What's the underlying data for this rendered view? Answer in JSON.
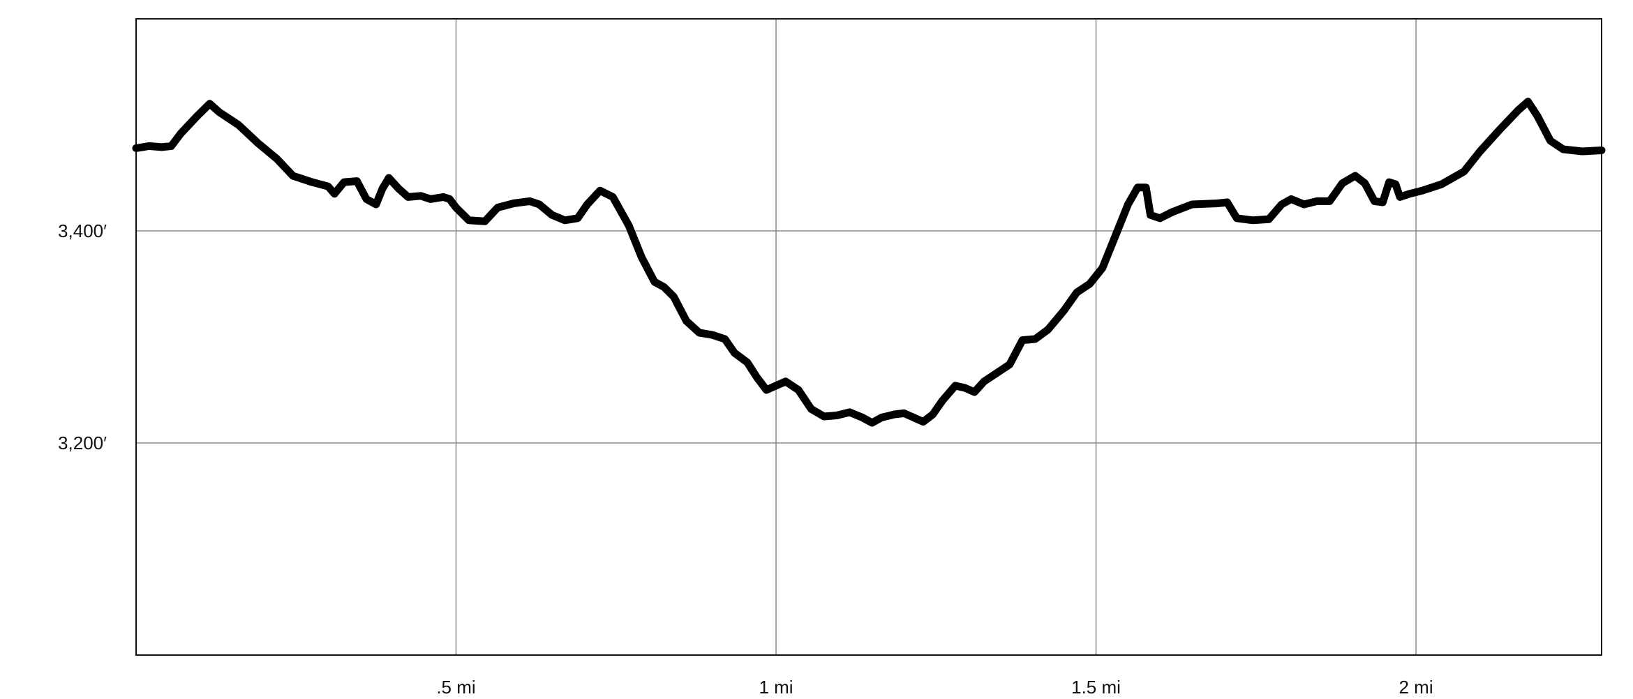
{
  "chart_data": {
    "type": "line",
    "title": "",
    "xlabel": "",
    "ylabel": "",
    "xlim": [
      0,
      2.29
    ],
    "ylim": [
      3000,
      3600
    ],
    "grid": true,
    "x_ticks": [
      {
        "value": 0.5,
        "label": ".5 mi"
      },
      {
        "value": 1.0,
        "label": "1 mi"
      },
      {
        "value": 1.5,
        "label": "1.5 mi"
      },
      {
        "value": 2.0,
        "label": "2 mi"
      }
    ],
    "y_ticks": [
      {
        "value": 3400,
        "label": "3,400′"
      },
      {
        "value": 3200,
        "label": "3,200′"
      }
    ],
    "series": [
      {
        "color": "#000000",
        "points": [
          [
            0.0,
            3478
          ],
          [
            0.02,
            3480
          ],
          [
            0.04,
            3479
          ],
          [
            0.055,
            3480
          ],
          [
            0.07,
            3492
          ],
          [
            0.095,
            3508
          ],
          [
            0.115,
            3520
          ],
          [
            0.13,
            3512
          ],
          [
            0.16,
            3500
          ],
          [
            0.19,
            3483
          ],
          [
            0.22,
            3468
          ],
          [
            0.245,
            3452
          ],
          [
            0.275,
            3446
          ],
          [
            0.3,
            3442
          ],
          [
            0.31,
            3435
          ],
          [
            0.325,
            3446
          ],
          [
            0.345,
            3447
          ],
          [
            0.36,
            3430
          ],
          [
            0.375,
            3425
          ],
          [
            0.385,
            3440
          ],
          [
            0.395,
            3450
          ],
          [
            0.41,
            3440
          ],
          [
            0.425,
            3432
          ],
          [
            0.445,
            3433
          ],
          [
            0.46,
            3430
          ],
          [
            0.48,
            3432
          ],
          [
            0.49,
            3430
          ],
          [
            0.5,
            3422
          ],
          [
            0.52,
            3410
          ],
          [
            0.545,
            3409
          ],
          [
            0.565,
            3422
          ],
          [
            0.59,
            3426
          ],
          [
            0.615,
            3428
          ],
          [
            0.63,
            3425
          ],
          [
            0.65,
            3415
          ],
          [
            0.67,
            3410
          ],
          [
            0.69,
            3412
          ],
          [
            0.705,
            3425
          ],
          [
            0.725,
            3438
          ],
          [
            0.745,
            3432
          ],
          [
            0.77,
            3405
          ],
          [
            0.79,
            3375
          ],
          [
            0.81,
            3352
          ],
          [
            0.825,
            3347
          ],
          [
            0.84,
            3338
          ],
          [
            0.86,
            3315
          ],
          [
            0.88,
            3304
          ],
          [
            0.9,
            3302
          ],
          [
            0.92,
            3298
          ],
          [
            0.935,
            3285
          ],
          [
            0.955,
            3276
          ],
          [
            0.97,
            3262
          ],
          [
            0.985,
            3250
          ],
          [
            1.0,
            3254
          ],
          [
            1.015,
            3258
          ],
          [
            1.035,
            3250
          ],
          [
            1.055,
            3232
          ],
          [
            1.075,
            3225
          ],
          [
            1.095,
            3226
          ],
          [
            1.115,
            3229
          ],
          [
            1.135,
            3224
          ],
          [
            1.15,
            3219
          ],
          [
            1.165,
            3224
          ],
          [
            1.185,
            3227
          ],
          [
            1.2,
            3228
          ],
          [
            1.215,
            3224
          ],
          [
            1.23,
            3220
          ],
          [
            1.245,
            3227
          ],
          [
            1.26,
            3240
          ],
          [
            1.28,
            3254
          ],
          [
            1.295,
            3252
          ],
          [
            1.31,
            3248
          ],
          [
            1.325,
            3258
          ],
          [
            1.345,
            3266
          ],
          [
            1.365,
            3274
          ],
          [
            1.385,
            3297
          ],
          [
            1.405,
            3298
          ],
          [
            1.425,
            3307
          ],
          [
            1.45,
            3325
          ],
          [
            1.47,
            3342
          ],
          [
            1.49,
            3350
          ],
          [
            1.51,
            3365
          ],
          [
            1.53,
            3395
          ],
          [
            1.55,
            3425
          ],
          [
            1.565,
            3441
          ],
          [
            1.578,
            3441
          ],
          [
            1.585,
            3415
          ],
          [
            1.6,
            3412
          ],
          [
            1.62,
            3418
          ],
          [
            1.65,
            3425
          ],
          [
            1.69,
            3426
          ],
          [
            1.705,
            3427
          ],
          [
            1.72,
            3412
          ],
          [
            1.745,
            3410
          ],
          [
            1.77,
            3411
          ],
          [
            1.79,
            3425
          ],
          [
            1.805,
            3430
          ],
          [
            1.825,
            3425
          ],
          [
            1.845,
            3428
          ],
          [
            1.865,
            3428
          ],
          [
            1.885,
            3445
          ],
          [
            1.905,
            3452
          ],
          [
            1.92,
            3445
          ],
          [
            1.935,
            3428
          ],
          [
            1.948,
            3427
          ],
          [
            1.958,
            3446
          ],
          [
            1.968,
            3444
          ],
          [
            1.975,
            3432
          ],
          [
            1.99,
            3435
          ],
          [
            2.01,
            3438
          ],
          [
            2.04,
            3444
          ],
          [
            2.075,
            3456
          ],
          [
            2.1,
            3475
          ],
          [
            2.13,
            3495
          ],
          [
            2.16,
            3514
          ],
          [
            2.175,
            3522
          ],
          [
            2.19,
            3508
          ],
          [
            2.21,
            3485
          ],
          [
            2.23,
            3477
          ],
          [
            2.26,
            3475
          ],
          [
            2.29,
            3476
          ]
        ]
      }
    ]
  }
}
